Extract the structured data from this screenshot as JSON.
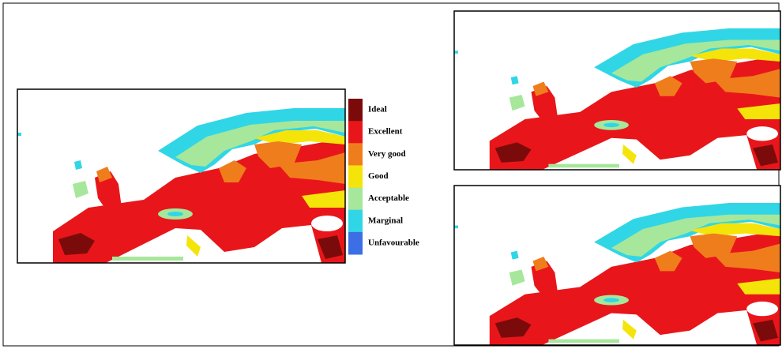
{
  "legend": {
    "items": [
      {
        "label": "Ideal",
        "color": "#7b0b0b"
      },
      {
        "label": "Excellent",
        "color": "#e8161a"
      },
      {
        "label": "Very good",
        "color": "#f07d1c"
      },
      {
        "label": "Good",
        "color": "#f5e40a"
      },
      {
        "label": "Acceptable",
        "color": "#a6e79b"
      },
      {
        "label": "Marginal",
        "color": "#30d6e6"
      },
      {
        "label": "Unfavourable",
        "color": "#3c6fe6"
      }
    ]
  }
}
